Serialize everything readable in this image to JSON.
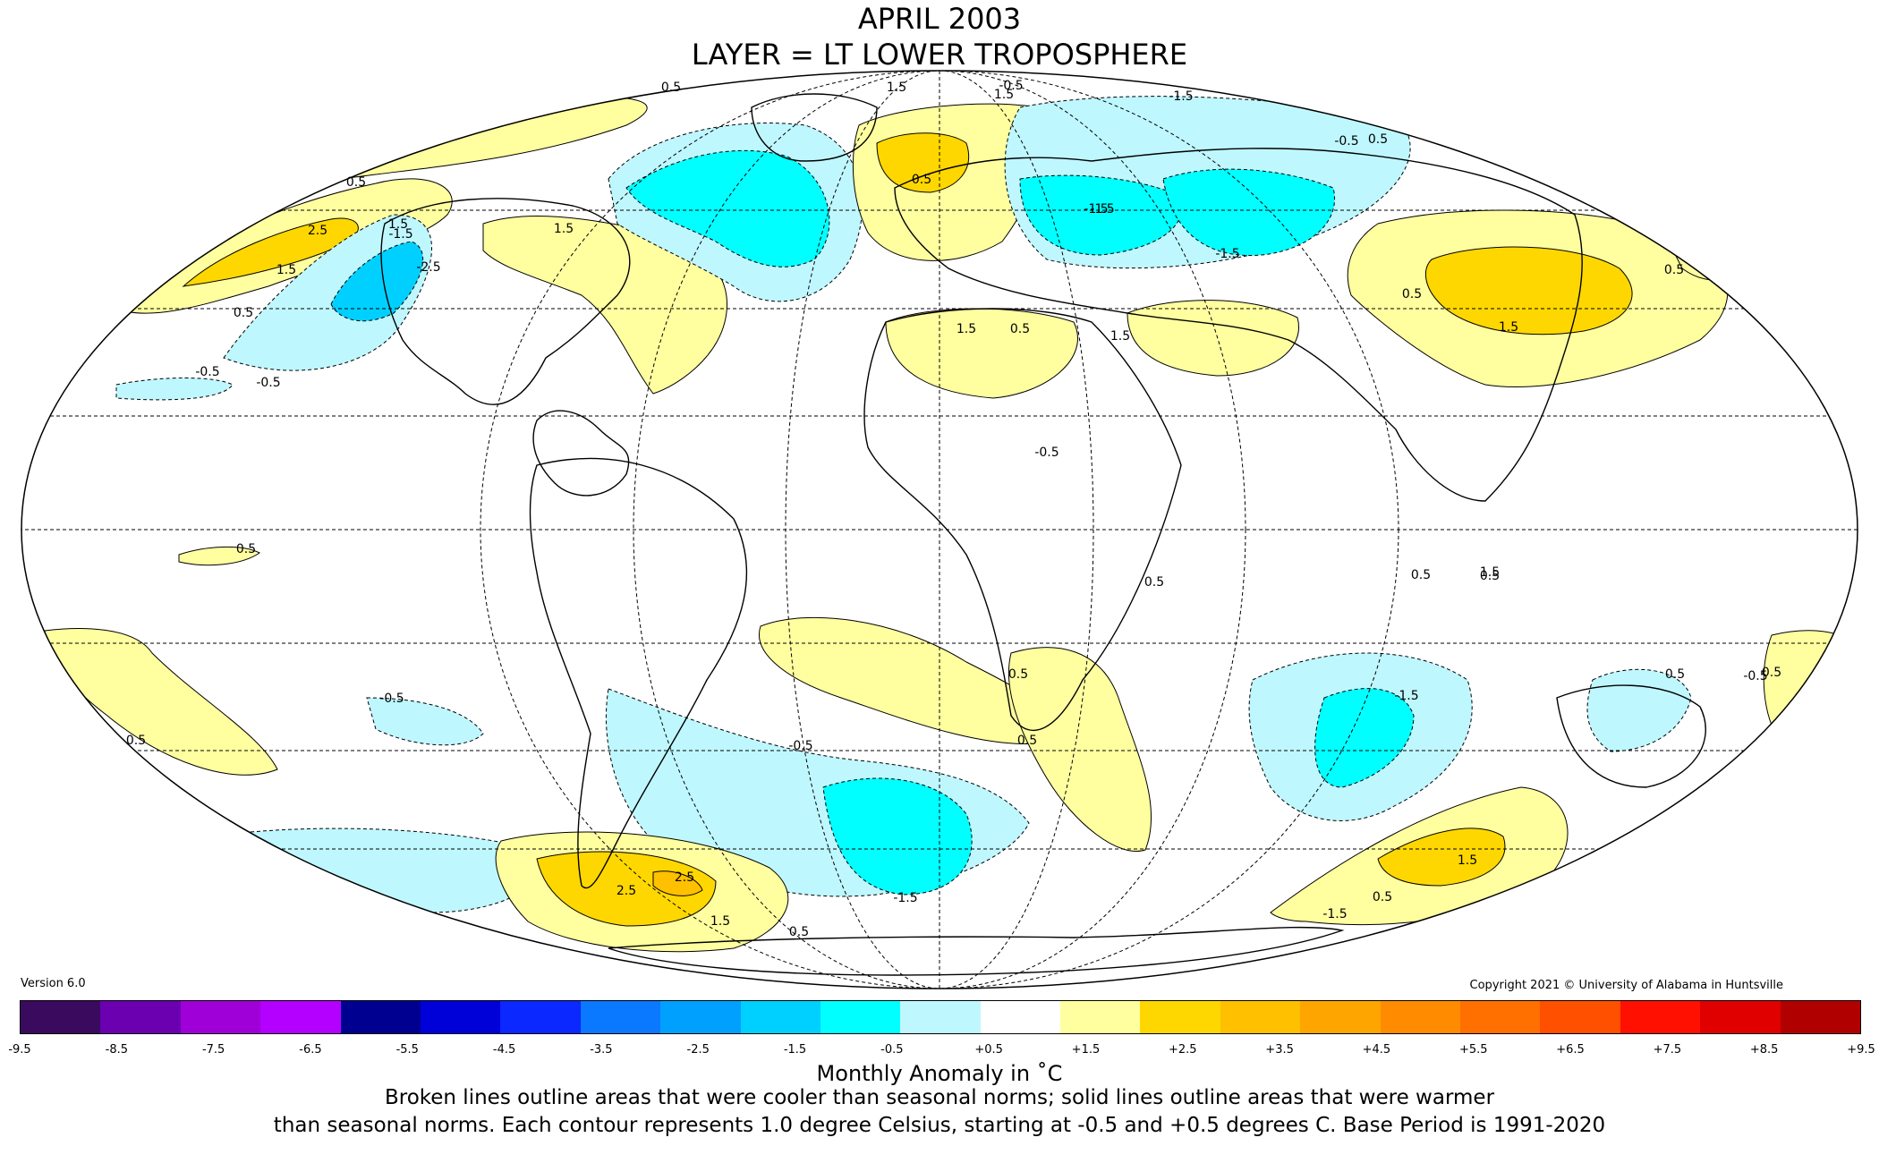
{
  "header": {
    "title_line1": "APRIL 2003",
    "title_line2": "LAYER = LT LOWER TROPOSPHERE"
  },
  "version": "Version 6.0",
  "copyright": "Copyright 2021 © University of Alabama in Huntsville",
  "colorbar": {
    "title": "Monthly Anomaly in ˚C",
    "colors": [
      "#3a0a5e",
      "#6a00b0",
      "#a000d8",
      "#b300ff",
      "#000090",
      "#0000d8",
      "#0a28ff",
      "#0a78ff",
      "#00a0ff",
      "#00d0ff",
      "#00ffff",
      "#bff7ff",
      "#ffffff",
      "#ffffa0",
      "#ffd700",
      "#ffc000",
      "#ffa500",
      "#ff8c00",
      "#ff7000",
      "#ff5000",
      "#ff1000",
      "#e00000",
      "#b00000"
    ],
    "ticks": [
      "-9.5",
      "-8.5",
      "-7.5",
      "-6.5",
      "-5.5",
      "-4.5",
      "-3.5",
      "-2.5",
      "-1.5",
      "-0.5",
      "+0.5",
      "+1.5",
      "+2.5",
      "+3.5",
      "+4.5",
      "+5.5",
      "+6.5",
      "+7.5",
      "+8.5",
      "+9.5"
    ]
  },
  "notes": {
    "line1": "Broken lines outline areas that were cooler than seasonal norms; solid lines outline areas that were warmer",
    "line2": "than seasonal norms. Each contour represents 1.0 degree Celsius, starting at -0.5 and +0.5 degrees C. Base Period is 1991-2020"
  },
  "map": {
    "fill_colors": {
      "warm1": "#ffffa0",
      "warm2": "#ffd700",
      "warm3": "#ffc000",
      "cool1": "#bff7ff",
      "cool2": "#00ffff",
      "cool3": "#00d0ff"
    },
    "contour_labels": [
      "0.5",
      "-0.5",
      "-1.5",
      "1.5",
      "0.5",
      "1.5",
      "2.5",
      "1.5",
      "0.5",
      "-1.5",
      "-2.5",
      "-0.5",
      "-0.5",
      "1.5",
      "0.5",
      "-0.5",
      "-1.5",
      "-1.5",
      "-1.5",
      "0.5",
      "1.5",
      "0.5",
      "1.5",
      "1.5",
      "0.5",
      "0.5",
      "0.5",
      "-1.5",
      "1.5",
      "0.5",
      "-0.5",
      "0.5",
      "0.5",
      "-0.5",
      "-0.5",
      "2.5",
      "2.5",
      "1.5",
      "0.5",
      "-1.5",
      "1.5",
      "0.5",
      "1.5",
      "0.5",
      "-0.5",
      "0.5",
      "0.5",
      "0.5",
      "-1.5",
      "0.5"
    ]
  }
}
